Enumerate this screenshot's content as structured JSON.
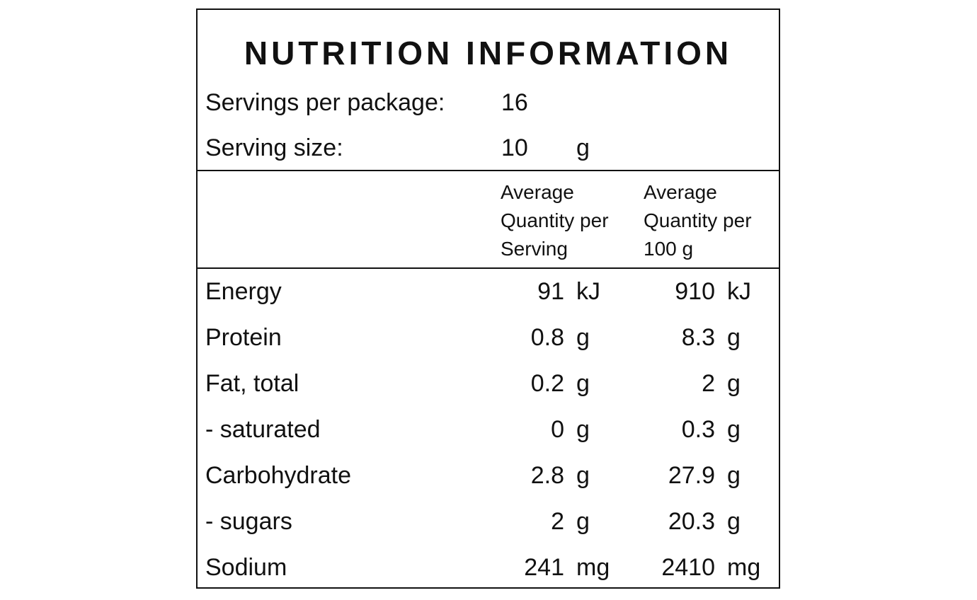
{
  "title": "NUTRITION INFORMATION",
  "servings": {
    "per_package": {
      "label": "Servings per package:",
      "value": "16"
    },
    "size": {
      "label": "Serving size:",
      "value": "10",
      "unit": "g"
    }
  },
  "table": {
    "header": [
      "Average Quantity per Serving",
      "Average Quantity per 100 g"
    ],
    "rows": [
      [
        "Energy",
        "91",
        "kJ",
        "910",
        "kJ"
      ],
      [
        "Protein",
        "0.8",
        "g",
        "8.3",
        "g"
      ],
      [
        "Fat, total",
        "0.2",
        "g",
        "2",
        "g"
      ],
      [
        "- saturated",
        "0",
        "g",
        "0.3",
        "g"
      ],
      [
        "Carbohydrate",
        "2.8",
        "g",
        "27.9",
        "g"
      ],
      [
        "- sugars",
        "2",
        "g",
        "20.3",
        "g"
      ],
      [
        "Sodium",
        "241",
        "mg",
        "2410",
        "mg"
      ]
    ]
  }
}
